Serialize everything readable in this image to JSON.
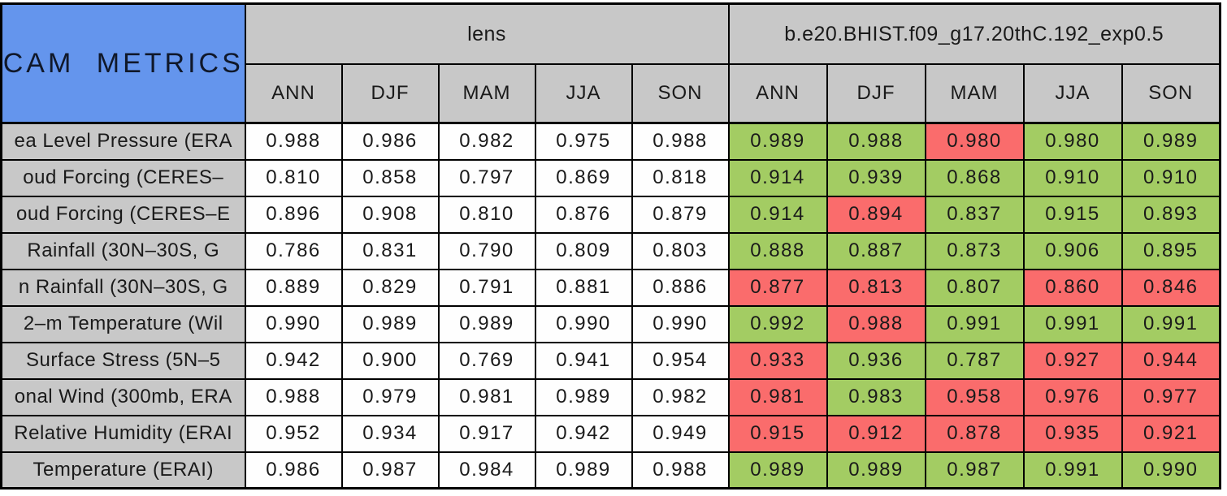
{
  "colors": {
    "title_bg": "#6495ED",
    "header_bg": "#C8C8C8",
    "reference_cell_bg": "#FEFEFE",
    "better_cell_bg": "#A3CC63",
    "worse_cell_bg": "#FA6C6C",
    "border": "#000000",
    "text": "#1a1a1a"
  },
  "chart_data": {
    "type": "table",
    "title": "CAM METRICS",
    "column_groups": [
      "lens",
      "b.e20.BHIST.f09_g17.20thC.192_exp0.5"
    ],
    "seasons": [
      "ANN",
      "DJF",
      "MAM",
      "JJA",
      "SON"
    ],
    "value_precision": 3,
    "rows": [
      {
        "label": "ea Level Pressure (ERA",
        "lens": [
          "0.988",
          "0.986",
          "0.982",
          "0.975",
          "0.988"
        ],
        "exp": [
          "0.989",
          "0.988",
          "0.980",
          "0.980",
          "0.989"
        ],
        "exp_status": [
          "better",
          "better",
          "worse",
          "better",
          "better"
        ]
      },
      {
        "label": "oud Forcing (CERES–",
        "lens": [
          "0.810",
          "0.858",
          "0.797",
          "0.869",
          "0.818"
        ],
        "exp": [
          "0.914",
          "0.939",
          "0.868",
          "0.910",
          "0.910"
        ],
        "exp_status": [
          "better",
          "better",
          "better",
          "better",
          "better"
        ]
      },
      {
        "label": "oud Forcing (CERES–E",
        "lens": [
          "0.896",
          "0.908",
          "0.810",
          "0.876",
          "0.879"
        ],
        "exp": [
          "0.914",
          "0.894",
          "0.837",
          "0.915",
          "0.893"
        ],
        "exp_status": [
          "better",
          "worse",
          "better",
          "better",
          "better"
        ]
      },
      {
        "label": "Rainfall (30N–30S, G",
        "lens": [
          "0.786",
          "0.831",
          "0.790",
          "0.809",
          "0.803"
        ],
        "exp": [
          "0.888",
          "0.887",
          "0.873",
          "0.906",
          "0.895"
        ],
        "exp_status": [
          "better",
          "better",
          "better",
          "better",
          "better"
        ]
      },
      {
        "label": "n Rainfall (30N–30S, G",
        "lens": [
          "0.889",
          "0.829",
          "0.791",
          "0.881",
          "0.886"
        ],
        "exp": [
          "0.877",
          "0.813",
          "0.807",
          "0.860",
          "0.846"
        ],
        "exp_status": [
          "worse",
          "worse",
          "better",
          "worse",
          "worse"
        ]
      },
      {
        "label": "2–m Temperature (Wil",
        "lens": [
          "0.990",
          "0.989",
          "0.989",
          "0.990",
          "0.990"
        ],
        "exp": [
          "0.992",
          "0.988",
          "0.991",
          "0.991",
          "0.991"
        ],
        "exp_status": [
          "better",
          "worse",
          "better",
          "better",
          "better"
        ]
      },
      {
        "label": "Surface Stress (5N–5",
        "lens": [
          "0.942",
          "0.900",
          "0.769",
          "0.941",
          "0.954"
        ],
        "exp": [
          "0.933",
          "0.936",
          "0.787",
          "0.927",
          "0.944"
        ],
        "exp_status": [
          "worse",
          "better",
          "better",
          "worse",
          "worse"
        ]
      },
      {
        "label": "onal Wind (300mb, ERA",
        "lens": [
          "0.988",
          "0.979",
          "0.981",
          "0.989",
          "0.982"
        ],
        "exp": [
          "0.981",
          "0.983",
          "0.958",
          "0.976",
          "0.977"
        ],
        "exp_status": [
          "worse",
          "better",
          "worse",
          "worse",
          "worse"
        ]
      },
      {
        "label": "Relative Humidity (ERAI",
        "lens": [
          "0.952",
          "0.934",
          "0.917",
          "0.942",
          "0.949"
        ],
        "exp": [
          "0.915",
          "0.912",
          "0.878",
          "0.935",
          "0.921"
        ],
        "exp_status": [
          "worse",
          "worse",
          "worse",
          "worse",
          "worse"
        ]
      },
      {
        "label": "Temperature (ERAI)",
        "lens": [
          "0.986",
          "0.987",
          "0.984",
          "0.989",
          "0.988"
        ],
        "exp": [
          "0.989",
          "0.989",
          "0.987",
          "0.991",
          "0.990"
        ],
        "exp_status": [
          "better",
          "better",
          "better",
          "better",
          "better"
        ]
      }
    ]
  }
}
